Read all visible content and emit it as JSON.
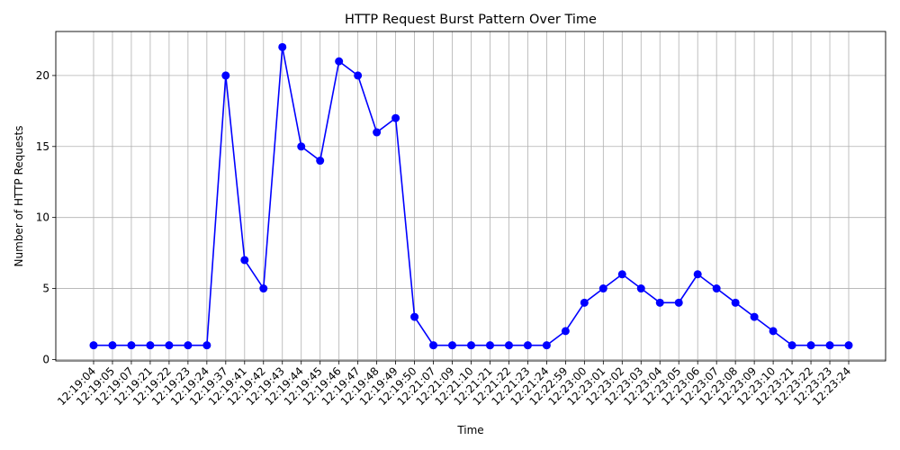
{
  "chart_data": {
    "type": "line",
    "title": "HTTP Request Burst Pattern Over Time",
    "xlabel": "Time",
    "ylabel": "Number of HTTP Requests",
    "ylim": [
      -0.1,
      23.1
    ],
    "yticks": [
      0,
      5,
      10,
      15,
      20
    ],
    "grid": true,
    "color": "#0000ff",
    "categories": [
      "12:19:04",
      "12:19:05",
      "12:19:07",
      "12:19:21",
      "12:19:22",
      "12:19:23",
      "12:19:24",
      "12:19:37",
      "12:19:41",
      "12:19:42",
      "12:19:43",
      "12:19:44",
      "12:19:45",
      "12:19:46",
      "12:19:47",
      "12:19:48",
      "12:19:49",
      "12:19:50",
      "12:21:07",
      "12:21:09",
      "12:21:10",
      "12:21:21",
      "12:21:22",
      "12:21:23",
      "12:21:24",
      "12:22:59",
      "12:23:00",
      "12:23:01",
      "12:23:02",
      "12:23:03",
      "12:23:04",
      "12:23:05",
      "12:23:06",
      "12:23:07",
      "12:23:08",
      "12:23:09",
      "12:23:10",
      "12:23:21",
      "12:23:22",
      "12:23:23",
      "12:23:24"
    ],
    "values": [
      1,
      1,
      1,
      1,
      1,
      1,
      1,
      20,
      7,
      5,
      22,
      15,
      14,
      21,
      20,
      16,
      17,
      3,
      1,
      1,
      1,
      1,
      1,
      1,
      1,
      2,
      4,
      5,
      6,
      5,
      4,
      4,
      6,
      5,
      4,
      3,
      2,
      1,
      1,
      1,
      1
    ]
  }
}
